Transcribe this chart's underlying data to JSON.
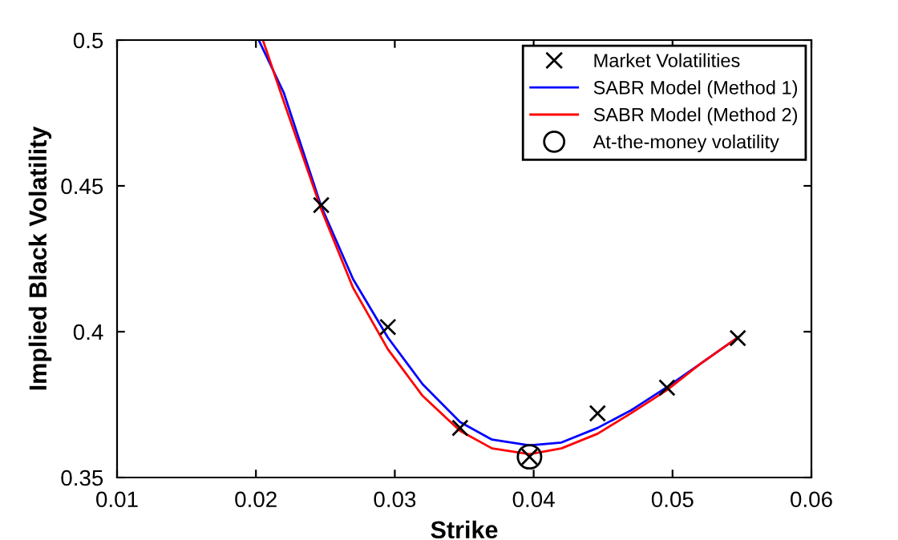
{
  "chart_data": {
    "type": "line",
    "xlabel": "Strike",
    "ylabel": "Implied Black Volatility",
    "xlim": [
      0.01,
      0.06
    ],
    "ylim": [
      0.35,
      0.5
    ],
    "xticks": [
      0.01,
      0.02,
      0.03,
      0.04,
      0.05,
      0.06
    ],
    "yticks": [
      0.35,
      0.4,
      0.45,
      0.5
    ],
    "legend": "top right",
    "grid": false,
    "series": [
      {
        "name": "Market Volatilities",
        "type": "scatter",
        "marker": "cross",
        "color": "#000000",
        "x": [
          0.0247,
          0.0295,
          0.0347,
          0.0397,
          0.0446,
          0.0496,
          0.0547
        ],
        "values": [
          0.4434,
          0.4016,
          0.367,
          0.3571,
          0.372,
          0.3808,
          0.3978
        ]
      },
      {
        "name": "SABR Model (Method 1)",
        "color": "#0000ff",
        "x": [
          0.0202,
          0.022,
          0.0247,
          0.027,
          0.0295,
          0.032,
          0.0347,
          0.037,
          0.0397,
          0.042,
          0.0446,
          0.047,
          0.0496,
          0.052,
          0.0547
        ],
        "values": [
          0.5,
          0.482,
          0.443,
          0.418,
          0.398,
          0.382,
          0.369,
          0.363,
          0.361,
          0.362,
          0.367,
          0.373,
          0.381,
          0.389,
          0.398
        ]
      },
      {
        "name": "SABR Model (Method 2)",
        "color": "#ff0000",
        "x": [
          0.0205,
          0.022,
          0.0247,
          0.027,
          0.0295,
          0.032,
          0.0347,
          0.037,
          0.0397,
          0.042,
          0.0446,
          0.047,
          0.0496,
          0.052,
          0.0547
        ],
        "values": [
          0.5,
          0.479,
          0.442,
          0.415,
          0.394,
          0.378,
          0.366,
          0.36,
          0.358,
          0.36,
          0.365,
          0.372,
          0.38,
          0.389,
          0.398
        ]
      },
      {
        "name": "At-the-money volatility",
        "type": "scatter",
        "marker": "circle",
        "color": "#000000",
        "x": [
          0.0397
        ],
        "values": [
          0.3571
        ]
      }
    ]
  }
}
